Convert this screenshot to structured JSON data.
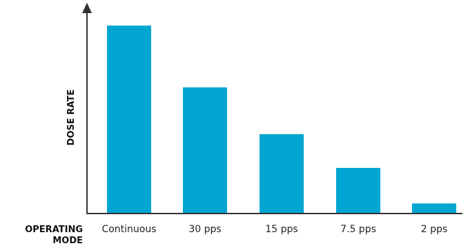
{
  "chart_data": {
    "type": "bar",
    "title": "",
    "xlabel_lines": [
      "OPERATING",
      "MODE"
    ],
    "ylabel": "DOSE RATE",
    "categories": [
      "Continuous",
      "30 pps",
      "15 pps",
      "7.5 pps",
      "2 pps"
    ],
    "values": [
      100,
      67,
      42,
      24,
      5
    ],
    "ylim": [
      0,
      100
    ],
    "grid": false,
    "legend": "none",
    "bar_color": "#00a6d1",
    "axis_color": "#333333"
  }
}
